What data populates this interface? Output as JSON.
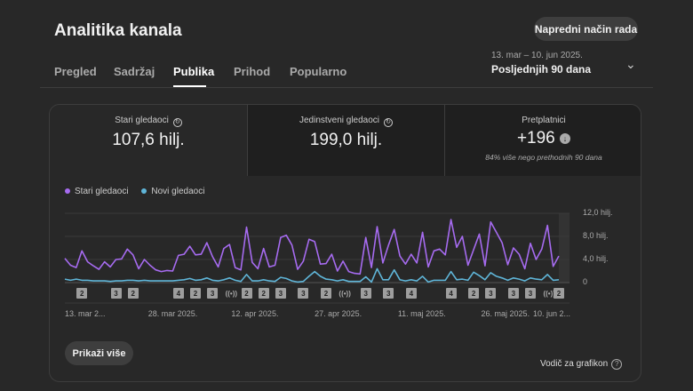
{
  "header": {
    "title": "Analitika kanala",
    "advanced_button": "Napredni način rada",
    "tabs": [
      {
        "label": "Pregled"
      },
      {
        "label": "Sadržaj"
      },
      {
        "label": "Publika",
        "active": true
      },
      {
        "label": "Prihod"
      },
      {
        "label": "Popularno"
      }
    ],
    "date_range": "13. mar – 10. jun 2025.",
    "date_period": "Posljednjih 90 dana"
  },
  "metrics": [
    {
      "label": "Stari gledaoci",
      "value": "107,6 hilj.",
      "icon": "clock-icon"
    },
    {
      "label": "Jedinstveni gledaoci",
      "value": "199,0 hilj.",
      "icon": "clock-icon"
    },
    {
      "label": "Pretplatnici",
      "value": "+196",
      "icon": "arrow-down-circle-icon",
      "sub": "84% više nego prethodnih 90 dana"
    }
  ],
  "chart_data": {
    "type": "line",
    "legend": [
      "Stari gledaoci",
      "Novi gledaoci"
    ],
    "colors": {
      "old": "#a66bf0",
      "new": "#5fb5d8"
    },
    "ylim": [
      0,
      12
    ],
    "yticks": [
      {
        "v": 12,
        "label": "12,0 hilj."
      },
      {
        "v": 8,
        "label": "8,0 hilj."
      },
      {
        "v": 4,
        "label": "4,0 hilj."
      },
      {
        "v": 0,
        "label": "0"
      }
    ],
    "xticks": [
      {
        "i": 0,
        "label": "13. mar 2..."
      },
      {
        "i": 15,
        "label": "28. mar 2025."
      },
      {
        "i": 30,
        "label": "12. apr 2025."
      },
      {
        "i": 45,
        "label": "27. apr 2025."
      },
      {
        "i": 60,
        "label": "11. maj 2025."
      },
      {
        "i": 75,
        "label": "26. maj 2025."
      },
      {
        "i": 88,
        "label": "10. jun 2..."
      }
    ],
    "series": [
      {
        "name": "Stari gledaoci",
        "values": [
          4.2,
          3,
          2.6,
          5.5,
          3.6,
          2.9,
          2.3,
          3.6,
          2.7,
          4,
          4.1,
          5.8,
          4.8,
          2.4,
          4,
          3,
          2.2,
          1.9,
          2.1,
          2,
          4.7,
          4.9,
          6.3,
          4.8,
          4.9,
          6.9,
          4.5,
          2.7,
          5.9,
          6.6,
          2.6,
          2.2,
          9.6,
          3.5,
          2.4,
          5.9,
          2.7,
          3,
          7.8,
          8.2,
          6.5,
          2.3,
          3.7,
          7.5,
          7.1,
          3.2,
          3.3,
          4.9,
          2,
          3.7,
          1.9,
          1.6,
          1.5,
          7.8,
          2.6,
          9.7,
          3.4,
          6.5,
          9.2,
          4.6,
          3.2,
          4.9,
          3.4,
          8.7,
          2.7,
          5.5,
          5.8,
          4.8,
          10.9,
          6.1,
          8,
          3,
          5.7,
          8.4,
          2.9,
          10.5,
          8.7,
          6.9,
          3.1,
          6,
          4.9,
          2.4,
          6.8,
          4,
          5.8,
          9.9,
          2.8,
          4.6
        ]
      },
      {
        "name": "Novi gledaoci",
        "values": [
          0.6,
          0.4,
          0.6,
          0.4,
          0.4,
          0.3,
          0.3,
          0.3,
          0.2,
          0.3,
          0.3,
          0.4,
          0.4,
          0.3,
          0.4,
          0.3,
          0.3,
          0.3,
          0.3,
          0.3,
          0.4,
          0.5,
          0.7,
          0.4,
          0.5,
          0.8,
          0.4,
          0.3,
          0.5,
          0.8,
          0.4,
          0.2,
          1.4,
          0.3,
          0.3,
          0.5,
          0.3,
          0.2,
          0.9,
          0.7,
          0.3,
          0.1,
          0.2,
          1.1,
          1.9,
          1.1,
          0.6,
          0.5,
          0.3,
          0.5,
          0.2,
          0.2,
          0.2,
          1,
          0.1,
          2.4,
          0.5,
          0.5,
          2.2,
          0.5,
          0.3,
          0.5,
          0.3,
          1.1,
          0.1,
          0.4,
          0.4,
          0.4,
          1.9,
          0.5,
          0.6,
          0.4,
          1.8,
          1.2,
          0.5,
          1.7,
          1.1,
          0.8,
          0.4,
          0.8,
          0.6,
          0.3,
          0.8,
          0.6,
          0.5,
          1.4,
          0.4,
          0.5
        ]
      }
    ],
    "markers": [
      {
        "i": 3,
        "label": "2"
      },
      {
        "i": 9,
        "label": "3"
      },
      {
        "i": 12,
        "label": "2"
      },
      {
        "i": 20,
        "label": "4"
      },
      {
        "i": 23,
        "label": "2"
      },
      {
        "i": 26,
        "label": "3"
      },
      {
        "i": 29,
        "label": "((•))",
        "live": true
      },
      {
        "i": 32,
        "label": "2"
      },
      {
        "i": 35,
        "label": "2"
      },
      {
        "i": 38,
        "label": "3"
      },
      {
        "i": 42,
        "label": "3"
      },
      {
        "i": 46,
        "label": "2"
      },
      {
        "i": 49,
        "label": "((•))",
        "live": true
      },
      {
        "i": 53,
        "label": "3"
      },
      {
        "i": 57,
        "label": "3"
      },
      {
        "i": 61,
        "label": "4"
      },
      {
        "i": 68,
        "label": "4"
      },
      {
        "i": 72,
        "label": "2"
      },
      {
        "i": 75,
        "label": "3"
      },
      {
        "i": 79,
        "label": "3"
      },
      {
        "i": 82,
        "label": "3"
      },
      {
        "i": 85,
        "label": "((•))",
        "live": true
      },
      {
        "i": 87,
        "label": "2"
      }
    ]
  },
  "footer": {
    "show_more": "Prikaži više",
    "guide": "Vodič za grafikon",
    "guide_icon": "?"
  }
}
